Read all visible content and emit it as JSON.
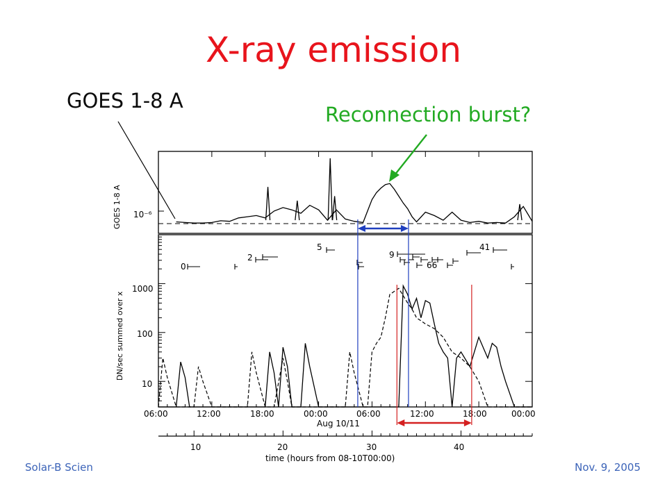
{
  "slide": {
    "title": "X-ray emission",
    "goes_callout": "GOES 1-8 A",
    "burst_callout": "Reconnection burst?",
    "footer_left": "Solar-B Scien",
    "footer_right": "Nov. 9, 2005"
  },
  "colors": {
    "title": "#e8141c",
    "burst_label": "#22aa22",
    "footer": "#3b63b8",
    "blue_markers": "#1f3fbf",
    "red_markers": "#d42020"
  },
  "chart_data": [
    {
      "type": "line",
      "panel": "top",
      "ylabel": "GOES 1-8 A",
      "yticks": [
        "10⁻⁶"
      ],
      "reference_level": 1.0,
      "series": [
        {
          "style": "solid",
          "x": [
            8,
            9,
            10,
            11,
            12,
            13,
            14,
            15,
            16,
            17,
            18,
            19,
            20,
            21,
            22,
            23,
            24,
            25,
            26,
            27,
            28,
            29,
            29.5,
            30,
            30.5,
            31,
            31.5,
            32,
            32.5,
            33,
            33.5,
            34,
            34.5,
            35,
            36,
            37,
            38,
            39,
            40,
            41,
            42,
            43,
            44,
            45,
            46,
            47,
            48
          ],
          "y": [
            1.15,
            1.1,
            1.05,
            1.05,
            1.1,
            1.25,
            1.2,
            1.5,
            1.6,
            1.7,
            1.5,
            2.1,
            2.4,
            2.2,
            1.9,
            2.6,
            2.2,
            1.3,
            2.2,
            1.4,
            1.2,
            1.1,
            2.1,
            3.1,
            3.7,
            4.1,
            4.4,
            4.5,
            4.0,
            3.4,
            2.8,
            2.3,
            1.6,
            1.15,
            2.0,
            1.7,
            1.3,
            2.0,
            1.3,
            1.1,
            1.2,
            1.05,
            1.1,
            1.05,
            1.6,
            2.5,
            1.2
          ]
        }
      ],
      "spikes": [
        [
          18.3,
          4.2
        ],
        [
          21.6,
          3.0
        ],
        [
          25.3,
          6.7
        ],
        [
          25.8,
          3.4
        ],
        [
          46.6,
          2.7
        ]
      ]
    },
    {
      "type": "line",
      "panel": "bottom",
      "ylabel": "DN/sec summed over x",
      "yticks": [
        "1000",
        "100",
        "10"
      ],
      "ylim": [
        3,
        10000
      ],
      "yscale": "log",
      "x_tick_labels": [
        "06:00",
        "12:00",
        "18:00",
        "00:00",
        "06:00",
        "12:00",
        "18:00",
        "00:00"
      ],
      "x_tick_hours": [
        6,
        12,
        18,
        24,
        30,
        36,
        42,
        48
      ],
      "date_label": "Aug 10/11",
      "x2_tick_labels": [
        "10",
        "20",
        "30",
        "40"
      ],
      "x2_tick_values": [
        10,
        20,
        30,
        40
      ],
      "x2_label": "time (hours from 08-10T00:00)",
      "series": [
        {
          "style": "solid",
          "x": [
            6,
            7,
            7.5,
            8,
            8.5,
            9,
            9.5,
            10,
            10.5,
            11,
            12,
            13,
            13.5,
            14,
            14.5,
            15,
            16,
            17,
            18,
            18.5,
            19,
            19.5,
            20,
            20.5,
            21,
            22,
            22.5,
            23,
            24,
            25,
            25.5,
            26,
            27,
            28,
            29,
            30,
            31,
            32,
            33,
            33.5,
            34,
            34.5,
            35,
            35.5,
            36,
            36.5,
            37,
            37.5,
            38,
            38.5,
            39,
            39.5,
            40,
            41,
            42,
            43,
            43.5,
            44,
            44.5,
            45,
            46,
            47,
            48
          ],
          "y": [
            3,
            3,
            3,
            3,
            25,
            12,
            3,
            3,
            3,
            3,
            3,
            3,
            3,
            3,
            3,
            3,
            3,
            3,
            3,
            40,
            15,
            3,
            50,
            20,
            3,
            3,
            60,
            20,
            3,
            3,
            3,
            3,
            3,
            3,
            3,
            3,
            3,
            3,
            3,
            900,
            600,
            300,
            500,
            200,
            450,
            400,
            150,
            60,
            40,
            30,
            3,
            30,
            40,
            20,
            80,
            30,
            60,
            50,
            20,
            10,
            3,
            3,
            3
          ]
        },
        {
          "style": "dashed",
          "x": [
            6,
            6.5,
            7,
            8,
            9,
            10,
            10.5,
            11,
            12,
            13,
            14,
            14.5,
            15,
            16,
            16.5,
            17,
            18,
            19,
            20,
            20.5,
            21,
            22,
            23,
            24,
            25,
            26,
            27,
            27.5,
            28,
            29,
            29.5,
            30,
            30.5,
            31,
            31.5,
            32,
            33,
            34,
            34.5,
            35,
            36,
            37,
            38,
            39,
            40,
            41,
            42,
            43,
            44,
            45,
            46,
            47,
            48
          ],
          "y": [
            3,
            30,
            12,
            3,
            3,
            3,
            20,
            10,
            3,
            3,
            3,
            3,
            3,
            3,
            40,
            15,
            3,
            3,
            30,
            10,
            3,
            3,
            3,
            3,
            3,
            3,
            3,
            40,
            15,
            3,
            3,
            40,
            60,
            80,
            200,
            600,
            800,
            400,
            300,
            200,
            150,
            120,
            80,
            40,
            30,
            20,
            10,
            3,
            3,
            3,
            3,
            3,
            3
          ]
        }
      ],
      "event_labels": [
        "0",
        "2",
        "5",
        "9",
        "66",
        "41"
      ],
      "blue_markers_hours": [
        28.4,
        34.1
      ],
      "red_markers_hours": [
        32.8,
        41.2
      ]
    }
  ]
}
